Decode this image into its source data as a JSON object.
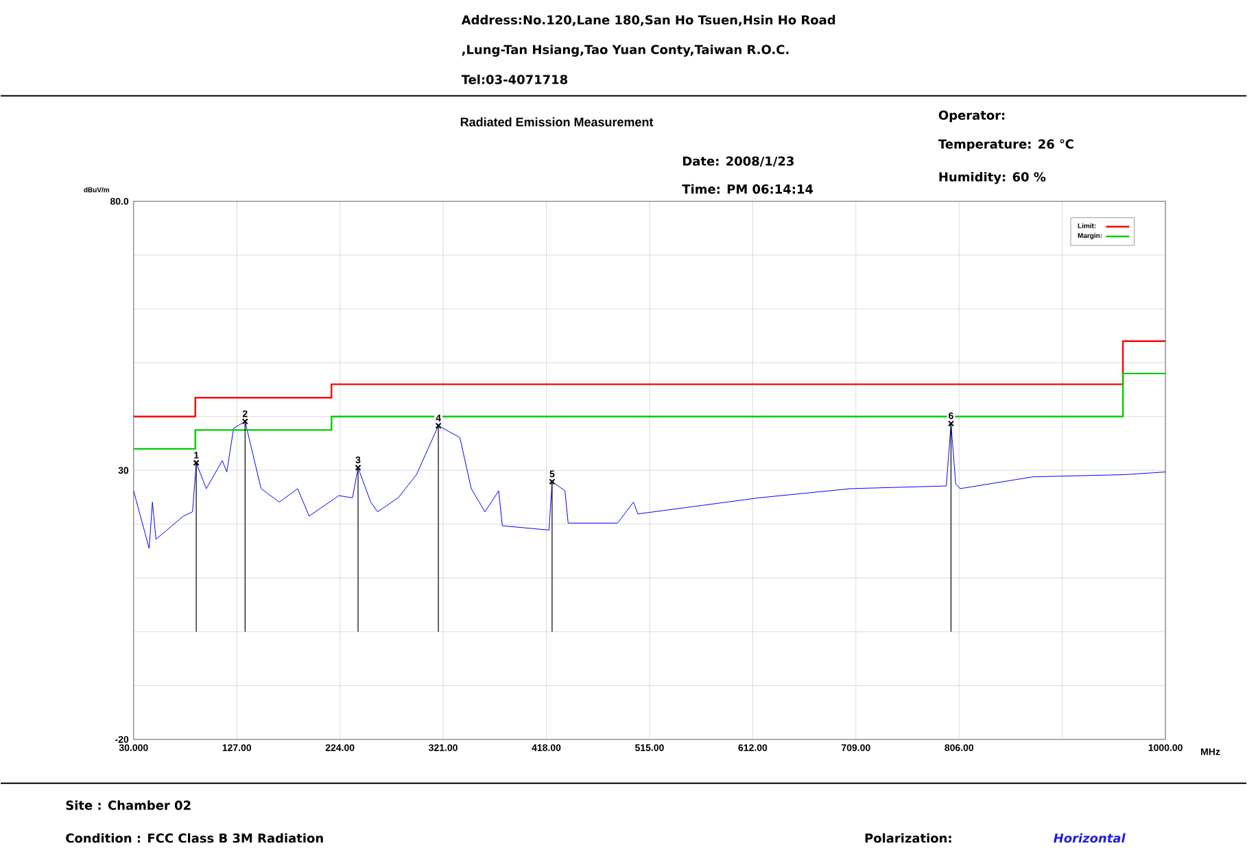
{
  "chart_data": {
    "type": "line",
    "title": "Radiated Emission Measurement",
    "xlabel": "MHz",
    "ylabel": "dBuV/m",
    "xlim": [
      30,
      1000
    ],
    "ylim": [
      -20,
      80
    ],
    "xticks": [
      {
        "value": 30,
        "label": "30.000"
      },
      {
        "value": 127,
        "label": "127.00"
      },
      {
        "value": 224,
        "label": "224.00"
      },
      {
        "value": 321,
        "label": "321.00"
      },
      {
        "value": 418,
        "label": "418.00"
      },
      {
        "value": 515,
        "label": "515.00"
      },
      {
        "value": 612,
        "label": "612.00"
      },
      {
        "value": 709,
        "label": "709.00"
      },
      {
        "value": 806,
        "label": "806.00"
      },
      {
        "value": 903,
        "label": null
      },
      {
        "value": 1000,
        "label": "1000.00"
      }
    ],
    "yticks": [
      -20,
      {
        "value": -10,
        "label": null
      },
      {
        "value": 0,
        "label": null
      },
      {
        "value": 10,
        "label": null
      },
      {
        "value": 20,
        "label": null
      },
      30,
      {
        "value": 40,
        "label": null
      },
      {
        "value": 50,
        "label": null
      },
      {
        "value": 60,
        "label": null
      },
      {
        "value": 70,
        "label": null
      },
      {
        "value": 80,
        "label": "80.0"
      }
    ],
    "grid": true,
    "legend": "top right",
    "series": [
      {
        "color": "#0000ff",
        "x": [
          30,
          44.6,
          47.7,
          51,
          76.8,
          85.4,
          88.9,
          98.3,
          113.4,
          117.6,
          124,
          134.8,
          149.8,
          167,
          184.2,
          195,
          222.9,
          235.8,
          241,
          252.9,
          259.4,
          278.7,
          295.9,
          316.5,
          336.7,
          347.4,
          360.3,
          373.2,
          376.6,
          420.5,
          423.4,
          435.5,
          438.5,
          446,
          484.9,
          499.9,
          504,
          553.6,
          618,
          704,
          794,
          798.4,
          802.8,
          807,
          875.7,
          961.7,
          1000
        ],
        "values": [
          26.2,
          15.5,
          24.1,
          17.2,
          21.5,
          22.3,
          31.4,
          26.6,
          31.8,
          29.7,
          37.8,
          39.1,
          26.6,
          24.1,
          26.6,
          21.5,
          25.3,
          24.9,
          30.5,
          24.1,
          22.3,
          24.9,
          29.2,
          38.3,
          36.1,
          26.6,
          22.3,
          26.2,
          19.7,
          18.9,
          27.9,
          26.2,
          20.2,
          20.2,
          20.2,
          24.1,
          21.9,
          23.2,
          24.9,
          26.6,
          27.1,
          38.7,
          27.5,
          26.6,
          28.8,
          29.2,
          29.7
        ]
      },
      {
        "name": "Limit:",
        "color": "#ff0000",
        "x": [
          30,
          88,
          88,
          216,
          216,
          960,
          960,
          1000
        ],
        "values": [
          40,
          40,
          43.5,
          43.5,
          46,
          46,
          54,
          54
        ]
      },
      {
        "name": "Margin:",
        "color": "#00cc00",
        "x": [
          30,
          88,
          88,
          216,
          216,
          960,
          960,
          1000
        ],
        "values": [
          34,
          34,
          37.5,
          37.5,
          40,
          40,
          48,
          48
        ]
      },
      {
        "type": "lollipop",
        "marker": "cross",
        "color": "#000000",
        "x": [
          88.9,
          134.8,
          241,
          316.5,
          423.4,
          798.4
        ],
        "values": [
          31.4,
          39.1,
          30.5,
          38.3,
          27.9,
          38.7
        ]
      }
    ],
    "annotations": [
      {
        "text": "1",
        "x": 88.9,
        "y": 31.4
      },
      {
        "text": "2",
        "x": 134.8,
        "y": 39.1
      },
      {
        "text": "3",
        "x": 241,
        "y": 30.5
      },
      {
        "text": "4",
        "x": 316.5,
        "y": 38.3
      },
      {
        "text": "5",
        "x": 423.4,
        "y": 27.9
      },
      {
        "text": "6",
        "x": 798.4,
        "y": 38.7
      },
      "Address:No.120,Lane 180,San Ho Tsuen,Hsin Ho Road",
      ",Lung-Tan Hsiang,Tao Yuan Conty,Taiwan R.O.C.",
      "Tel:03-4071718",
      "Date: 2008/1/23",
      "Time: PM 06:14:14",
      "Operator:",
      "Temperature:   26 ℃",
      "Humidity:   60 %",
      "Site :     Chamber 02",
      "Condition :   FCC Class B 3M Radiation",
      "Polarization:",
      "*Horizontal*"
    ]
  }
}
